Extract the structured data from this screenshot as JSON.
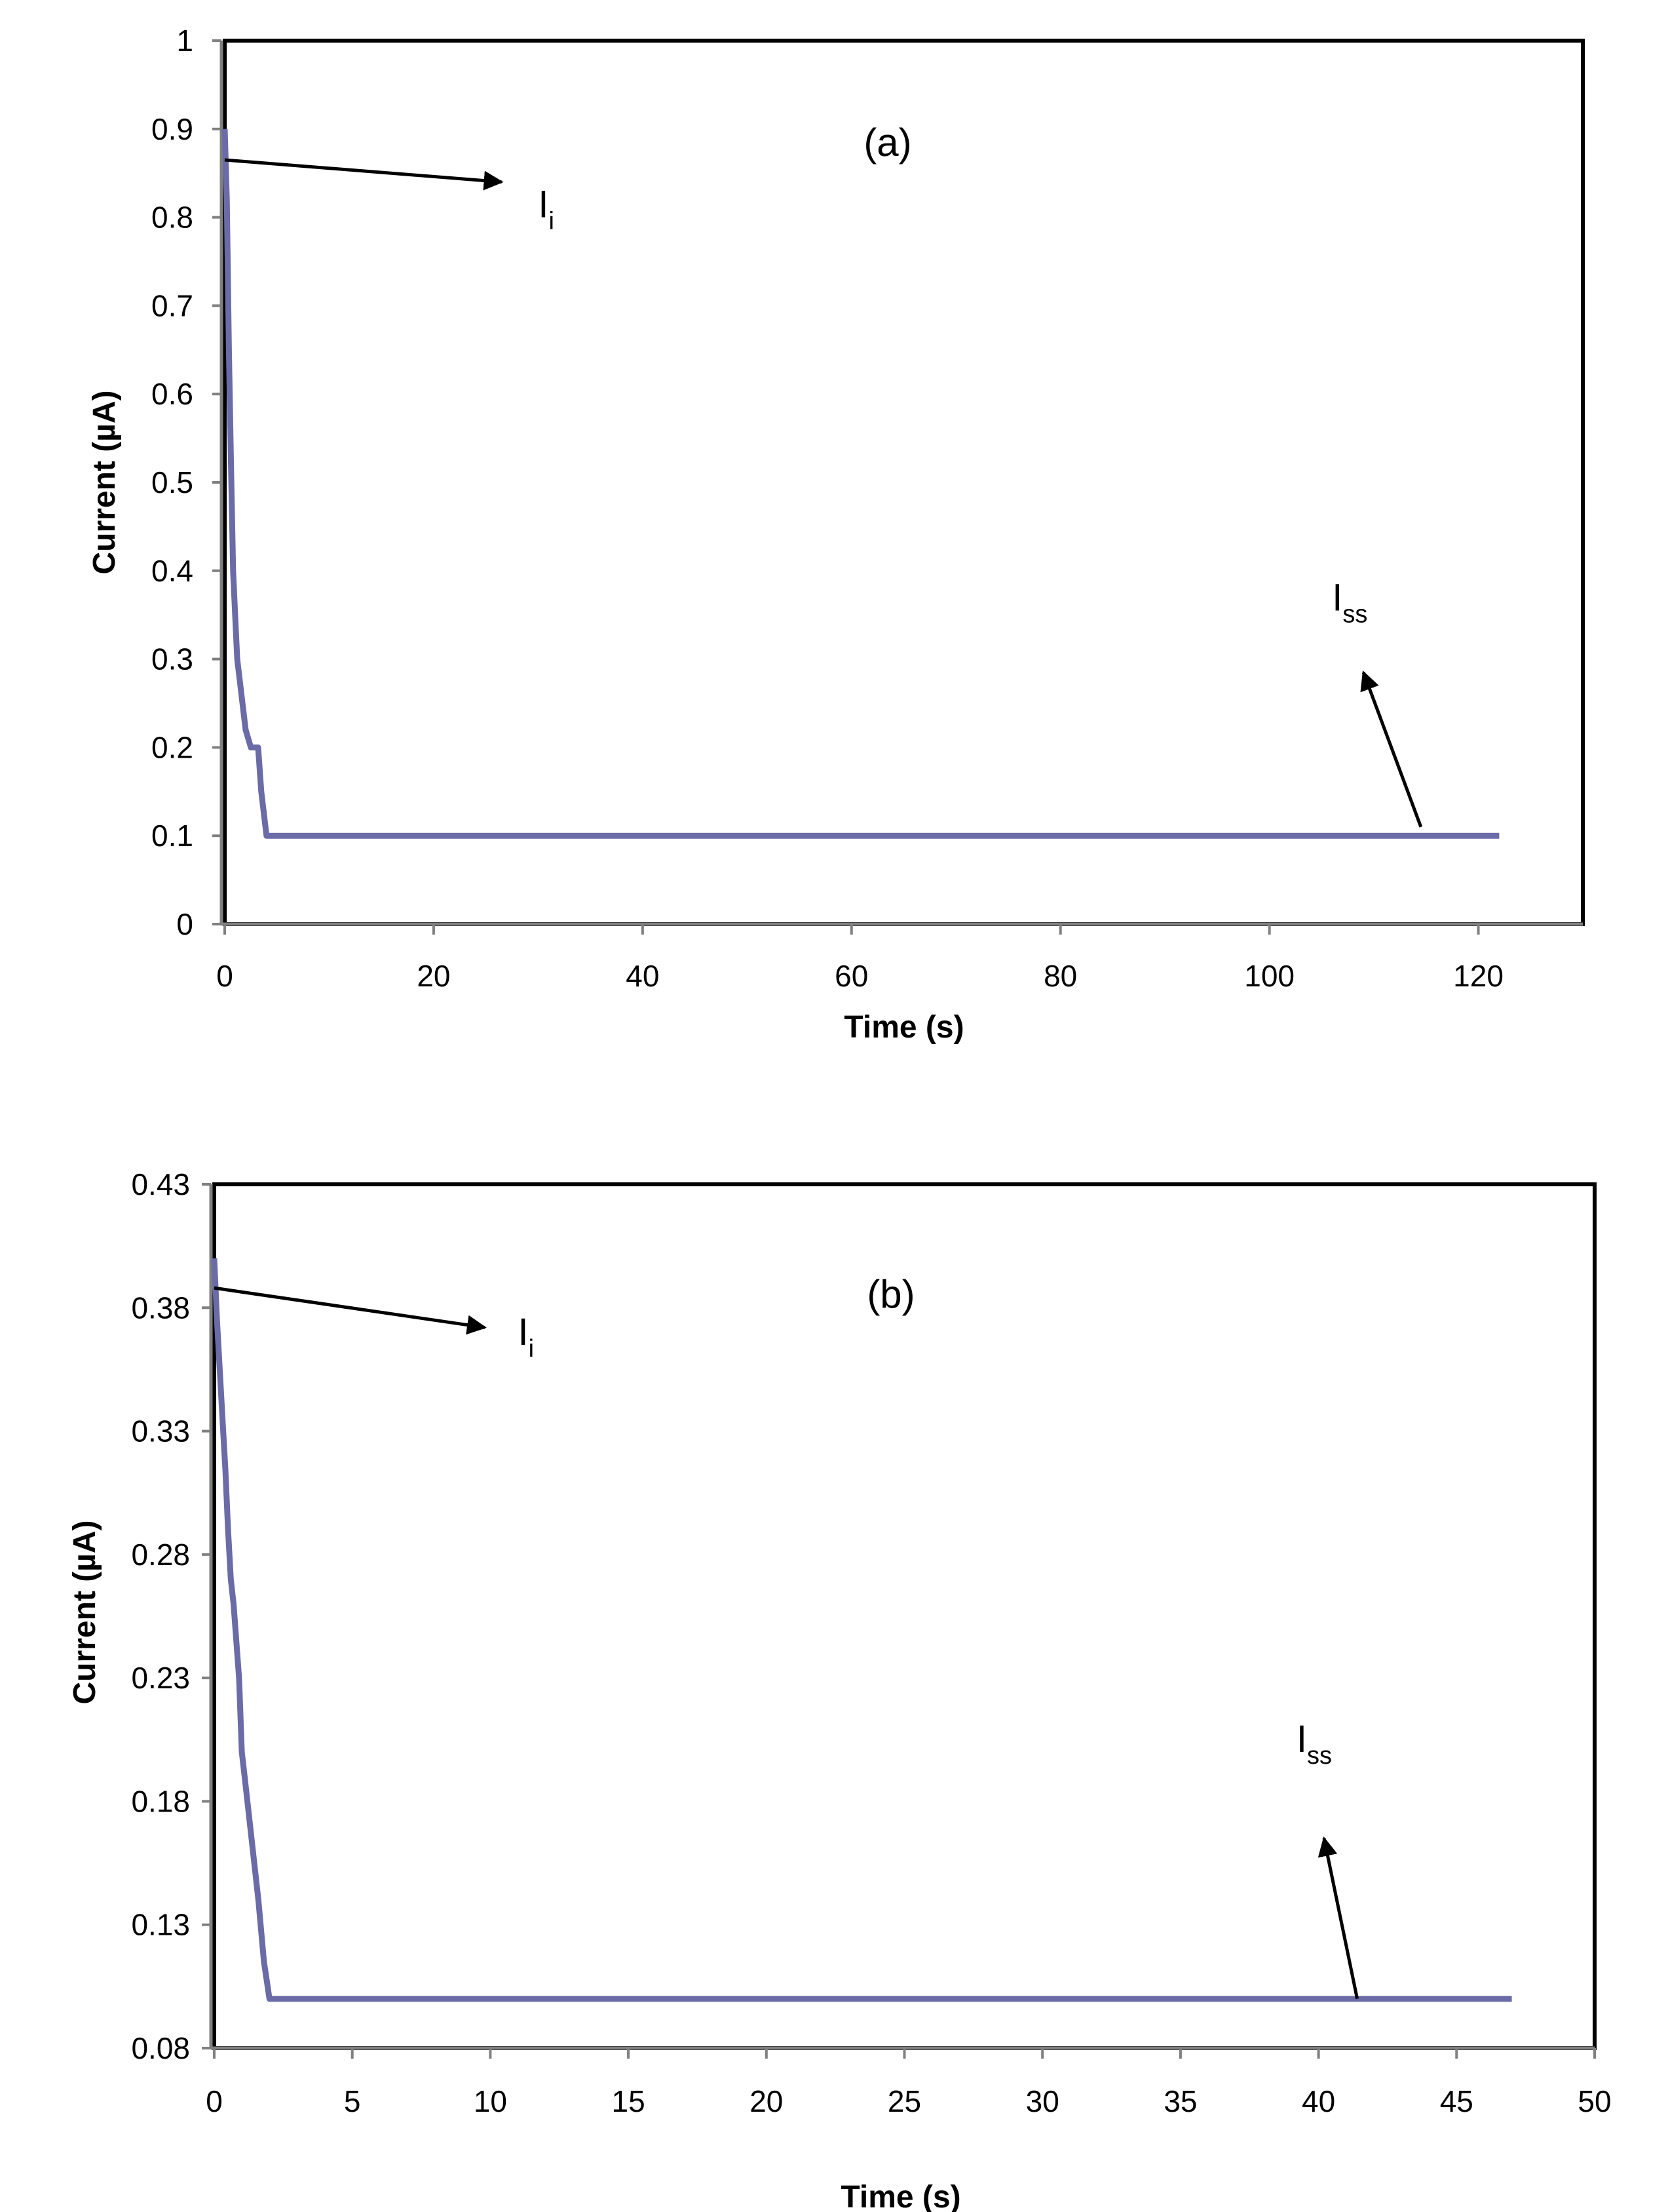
{
  "colors": {
    "series": "#6b6ba8",
    "axis": "#808080",
    "frame": "#000000"
  },
  "chart_data": [
    {
      "id": "a",
      "type": "line",
      "panel_label": "(a)",
      "xlabel": "Time (s)",
      "ylabel": "Current (µA)",
      "xlim": [
        0,
        130
      ],
      "ylim": [
        0,
        1
      ],
      "xticks": [
        0,
        20,
        40,
        60,
        80,
        100,
        120
      ],
      "yticks": [
        0,
        0.1,
        0.2,
        0.3,
        0.4,
        0.5,
        0.6,
        0.7,
        0.8,
        0.9,
        1
      ],
      "ytick_labels": [
        "0",
        "0.1",
        "0.2",
        "0.3",
        "0.4",
        "0.5",
        "0.6",
        "0.7",
        "0.8",
        "0.9",
        "1"
      ],
      "grid": false,
      "series": [
        {
          "name": "Current",
          "x": [
            0,
            0.2,
            0.4,
            0.6,
            0.8,
            1.0,
            1.2,
            1.5,
            2.0,
            2.5,
            3.0,
            3.2,
            3.5,
            4.0,
            122
          ],
          "y": [
            0.9,
            0.82,
            0.65,
            0.52,
            0.4,
            0.35,
            0.3,
            0.27,
            0.22,
            0.2,
            0.2,
            0.2,
            0.15,
            0.1,
            0.1
          ]
        }
      ],
      "annotations": [
        {
          "text": "I",
          "sub": "i",
          "x": 30,
          "y": 0.8,
          "arrow_from": [
            0,
            0.865
          ],
          "arrow_to": [
            26.5,
            0.84
          ]
        },
        {
          "text": "I",
          "sub": "ss",
          "x": 106,
          "y": 0.355,
          "arrow_from": [
            114.5,
            0.11
          ],
          "arrow_to": [
            109,
            0.285
          ]
        }
      ]
    },
    {
      "id": "b",
      "type": "line",
      "panel_label": "(b)",
      "xlabel": "Time (s)",
      "ylabel": "Current (µA)",
      "xlim": [
        0,
        50
      ],
      "ylim": [
        0.08,
        0.43
      ],
      "xticks": [
        0,
        5,
        10,
        15,
        20,
        25,
        30,
        35,
        40,
        45,
        50
      ],
      "yticks": [
        0.08,
        0.13,
        0.18,
        0.23,
        0.28,
        0.33,
        0.38,
        0.43
      ],
      "ytick_labels": [
        "0.08",
        "0.13",
        "0.18",
        "0.23",
        "0.28",
        "0.33",
        "0.38",
        "0.43"
      ],
      "grid": false,
      "series": [
        {
          "name": "Current",
          "x": [
            0,
            0.1,
            0.2,
            0.3,
            0.4,
            0.5,
            0.6,
            0.7,
            0.8,
            0.9,
            1.0,
            1.1,
            1.2,
            1.4,
            1.6,
            1.8,
            2.0,
            47
          ],
          "y": [
            0.4,
            0.375,
            0.355,
            0.335,
            0.315,
            0.29,
            0.27,
            0.26,
            0.245,
            0.23,
            0.2,
            0.19,
            0.18,
            0.16,
            0.14,
            0.115,
            0.1,
            0.1
          ]
        }
      ],
      "annotations": [
        {
          "text": "I",
          "sub": "i",
          "x": 11,
          "y": 0.365,
          "arrow_from": [
            0,
            0.388
          ],
          "arrow_to": [
            9.8,
            0.372
          ]
        },
        {
          "text": "I",
          "sub": "ss",
          "x": 39.2,
          "y": 0.2,
          "arrow_from": [
            41.4,
            0.1
          ],
          "arrow_to": [
            40.2,
            0.165
          ]
        }
      ]
    }
  ]
}
